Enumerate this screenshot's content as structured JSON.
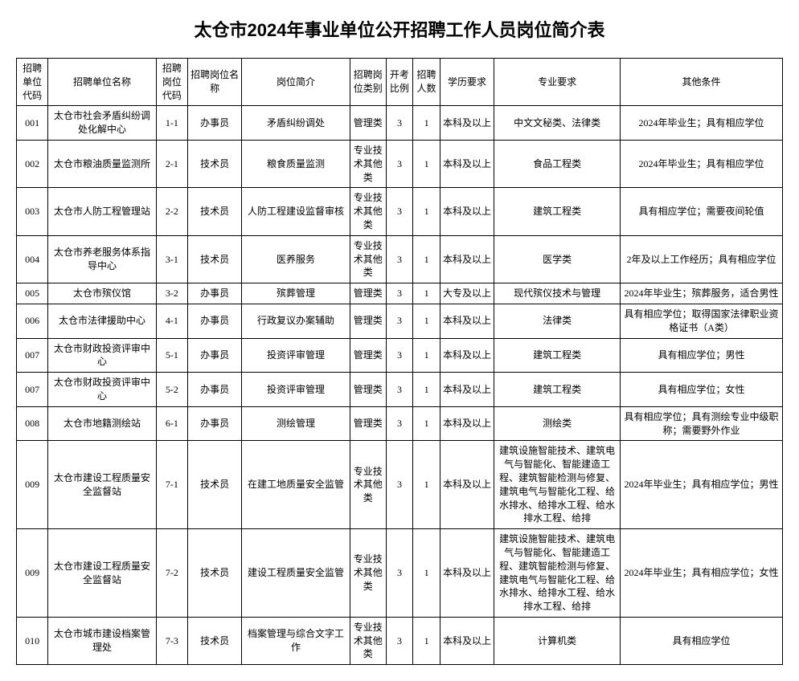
{
  "title": "太仓市2024年事业单位公开招聘工作人员岗位简介表",
  "headers": {
    "unit_code": "招聘单位代码",
    "unit_name": "招聘单位名称",
    "pos_code": "招聘岗位代码",
    "pos_name": "招聘岗位名称",
    "intro": "岗位简介",
    "pos_type": "招聘岗位类别",
    "ratio": "开考比例",
    "num": "招聘人数",
    "edu": "学历要求",
    "major": "专业要求",
    "other": "其他条件"
  },
  "rows": [
    {
      "unit_code": "001",
      "unit_name": "太仓市社会矛盾纠纷调处化解中心",
      "pos_code": "1-1",
      "pos_name": "办事员",
      "intro": "矛盾纠纷调处",
      "pos_type": "管理类",
      "ratio": "3",
      "num": "1",
      "edu": "本科及以上",
      "major": "中文文秘类、法律类",
      "other": "2024年毕业生；具有相应学位"
    },
    {
      "unit_code": "002",
      "unit_name": "太仓市粮油质量监测所",
      "pos_code": "2-1",
      "pos_name": "技术员",
      "intro": "粮食质量监测",
      "pos_type": "专业技术其他类",
      "ratio": "3",
      "num": "1",
      "edu": "本科及以上",
      "major": "食品工程类",
      "other": "2024年毕业生；具有相应学位"
    },
    {
      "unit_code": "003",
      "unit_name": "太仓市人防工程管理站",
      "pos_code": "2-2",
      "pos_name": "技术员",
      "intro": "人防工程建设监督审核",
      "pos_type": "专业技术其他类",
      "ratio": "3",
      "num": "1",
      "edu": "本科及以上",
      "major": "建筑工程类",
      "other": "具有相应学位；需要夜间轮值"
    },
    {
      "unit_code": "004",
      "unit_name": "太仓市养老服务体系指导中心",
      "pos_code": "3-1",
      "pos_name": "技术员",
      "intro": "医养服务",
      "pos_type": "专业技术其他类",
      "ratio": "3",
      "num": "1",
      "edu": "本科及以上",
      "major": "医学类",
      "other": "2年及以上工作经历；具有相应学位"
    },
    {
      "unit_code": "005",
      "unit_name": "太仓市殡仪馆",
      "pos_code": "3-2",
      "pos_name": "办事员",
      "intro": "殡葬管理",
      "pos_type": "管理类",
      "ratio": "3",
      "num": "1",
      "edu": "大专及以上",
      "major": "现代殡仪技术与管理",
      "other": "2024年毕业生；殡葬服务，适合男性"
    },
    {
      "unit_code": "006",
      "unit_name": "太仓市法律援助中心",
      "pos_code": "4-1",
      "pos_name": "办事员",
      "intro": "行政复议办案辅助",
      "pos_type": "管理类",
      "ratio": "3",
      "num": "1",
      "edu": "本科及以上",
      "major": "法律类",
      "other": "具有相应学位；取得国家法律职业资格证书（A类）"
    },
    {
      "unit_code": "007",
      "unit_name": "太仓市财政投资评审中心",
      "pos_code": "5-1",
      "pos_name": "办事员",
      "intro": "投资评审管理",
      "pos_type": "管理类",
      "ratio": "3",
      "num": "1",
      "edu": "本科及以上",
      "major": "建筑工程类",
      "other": "具有相应学位；男性"
    },
    {
      "unit_code": "007",
      "unit_name": "太仓市财政投资评审中心",
      "pos_code": "5-2",
      "pos_name": "办事员",
      "intro": "投资评审管理",
      "pos_type": "管理类",
      "ratio": "3",
      "num": "1",
      "edu": "本科及以上",
      "major": "建筑工程类",
      "other": "具有相应学位；女性"
    },
    {
      "unit_code": "008",
      "unit_name": "太仓市地籍测绘站",
      "pos_code": "6-1",
      "pos_name": "办事员",
      "intro": "测绘管理",
      "pos_type": "管理类",
      "ratio": "3",
      "num": "1",
      "edu": "本科及以上",
      "major": "测绘类",
      "other": "具有相应学位；具有测绘专业中级职称；需要野外作业"
    },
    {
      "unit_code": "009",
      "unit_name": "太仓市建设工程质量安全监督站",
      "pos_code": "7-1",
      "pos_name": "技术员",
      "intro": "在建工地质量安全监管",
      "pos_type": "专业技术其他类",
      "ratio": "3",
      "num": "1",
      "edu": "本科及以上",
      "major": "建筑设施智能技术、建筑电气与智能化、智能建造工程、建筑智能检测与修复、建筑电气与智能化工程、给水排水、给排水工程、给水排水工程、给排",
      "other": "2024年毕业生；具有相应学位；男性"
    },
    {
      "unit_code": "009",
      "unit_name": "太仓市建设工程质量安全监督站",
      "pos_code": "7-2",
      "pos_name": "技术员",
      "intro": "建设工程质量安全监管",
      "pos_type": "专业技术其他类",
      "ratio": "3",
      "num": "1",
      "edu": "本科及以上",
      "major": "建筑设施智能技术、建筑电气与智能化、智能建造工程、建筑智能检测与修复、建筑电气与智能化工程、给水排水、给排水工程、给水排水工程、给排",
      "other": "2024年毕业生；具有相应学位；女性"
    },
    {
      "unit_code": "010",
      "unit_name": "太仓市城市建设档案管理处",
      "pos_code": "7-3",
      "pos_name": "技术员",
      "intro": "档案管理与综合文字工作",
      "pos_type": "专业技术其他类",
      "ratio": "3",
      "num": "1",
      "edu": "本科及以上",
      "major": "计算机类",
      "other": "具有相应学位"
    }
  ]
}
